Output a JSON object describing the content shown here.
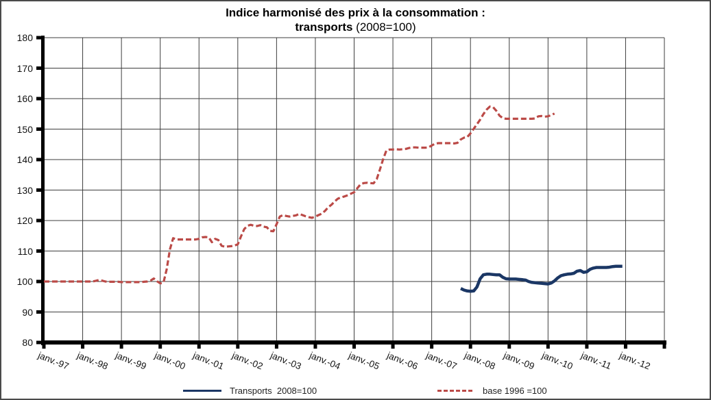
{
  "title": {
    "line1": "Indice harmonisé des prix à la consommation :",
    "line2_bold": "transports",
    "line2_rest": " (2008=100)"
  },
  "legend": {
    "items": [
      {
        "label": "Transports  2008=100",
        "color": "#1B3765",
        "style": "solid"
      },
      {
        "label": "base 1996 =100",
        "color": "#BB4A47",
        "style": "dashed"
      }
    ]
  },
  "colors": {
    "transports_line": "#1B3765",
    "base1996_line": "#BB4A47",
    "gridline": "#3d3d3d",
    "axis": "#000000",
    "background": "#ffffff"
  },
  "chart_data": {
    "type": "line",
    "title": "Indice harmonisé des prix à la consommation : transports (2008=100)",
    "xlabel": "",
    "ylabel": "",
    "ylim": [
      80,
      180
    ],
    "y_ticks": [
      180,
      170,
      160,
      150,
      140,
      130,
      120,
      110,
      100,
      90,
      80
    ],
    "x_tick_labels": [
      "janv.-97",
      "janv.-98",
      "janv.-99",
      "janv.-00",
      "janv.-01",
      "janv.-02",
      "janv.-03",
      "janv.-04",
      "janv.-05",
      "janv.-06",
      "janv.-07",
      "janv.-08",
      "janv.-09",
      "janv.-10",
      "janv.-11",
      "janv.-12"
    ],
    "grid": true,
    "legend_position": "bottom",
    "frequency": "monthly",
    "series": [
      {
        "name": "Transports  2008=100",
        "color": "#1B3765",
        "line_style": "solid",
        "start_month": "2007-10",
        "monthly_values": [
          97.7,
          97.2,
          96.9,
          96.8,
          96.9,
          98.2,
          100.9,
          102.2,
          102.4,
          102.4,
          102.3,
          102.2,
          102.2,
          101.4,
          100.9,
          100.8,
          100.8,
          100.8,
          100.7,
          100.6,
          100.5,
          100.0,
          99.7,
          99.6,
          99.5,
          99.4,
          99.3,
          99.2,
          99.5,
          100.2,
          101.2,
          101.9,
          102.2,
          102.4,
          102.5,
          102.7,
          103.4,
          103.6,
          103.0,
          103.2,
          104.0,
          104.4,
          104.6,
          104.6,
          104.6,
          104.6,
          104.7,
          104.9,
          105.0,
          105.0,
          105.0
        ]
      },
      {
        "name": "base 1996 =100",
        "color": "#BB4A47",
        "line_style": "dashed",
        "start_month": "1997-01",
        "monthly_values": [
          100.0,
          100.0,
          100.0,
          100.0,
          100.0,
          100.0,
          100.0,
          100.0,
          100.0,
          100.0,
          100.0,
          100.0,
          100.0,
          100.0,
          100.0,
          100.0,
          100.2,
          100.5,
          100.3,
          100.0,
          99.9,
          99.9,
          99.9,
          99.9,
          99.8,
          99.8,
          99.8,
          99.8,
          99.8,
          99.8,
          99.8,
          99.9,
          100.0,
          100.3,
          101.0,
          100.1,
          99.4,
          99.6,
          104.0,
          110.5,
          114.2,
          113.8,
          113.8,
          113.8,
          113.8,
          113.8,
          113.8,
          113.8,
          114.0,
          114.5,
          114.6,
          114.5,
          112.9,
          114.0,
          113.6,
          111.7,
          111.4,
          111.5,
          111.6,
          111.8,
          112.2,
          114.8,
          117.2,
          118.3,
          118.6,
          118.3,
          118.2,
          118.5,
          118.0,
          117.8,
          116.6,
          116.5,
          118.8,
          121.3,
          121.8,
          121.5,
          121.3,
          121.5,
          121.7,
          122.2,
          121.8,
          121.4,
          121.1,
          120.9,
          121.3,
          121.8,
          122.3,
          123.2,
          124.4,
          125.2,
          126.3,
          127.2,
          127.6,
          127.9,
          128.3,
          128.8,
          129.3,
          130.6,
          131.9,
          132.3,
          132.4,
          132.3,
          132.2,
          133.6,
          136.8,
          140.2,
          143.0,
          143.3,
          143.3,
          143.4,
          143.3,
          143.4,
          143.5,
          143.8,
          144.0,
          144.0,
          143.9,
          143.9,
          143.9,
          144.0,
          144.6,
          145.2,
          145.4,
          145.4,
          145.4,
          145.4,
          145.4,
          145.3,
          145.5,
          146.6,
          147.2,
          147.4,
          148.6,
          150.1,
          151.6,
          153.1,
          154.9,
          156.4,
          157.4,
          157.2,
          156.0,
          154.4,
          153.6,
          153.4,
          153.4,
          153.4,
          153.4,
          153.4,
          153.4,
          153.4,
          153.4,
          153.4,
          153.5,
          154.2,
          154.3,
          154.1,
          154.2,
          154.6,
          155.1
        ]
      }
    ]
  }
}
